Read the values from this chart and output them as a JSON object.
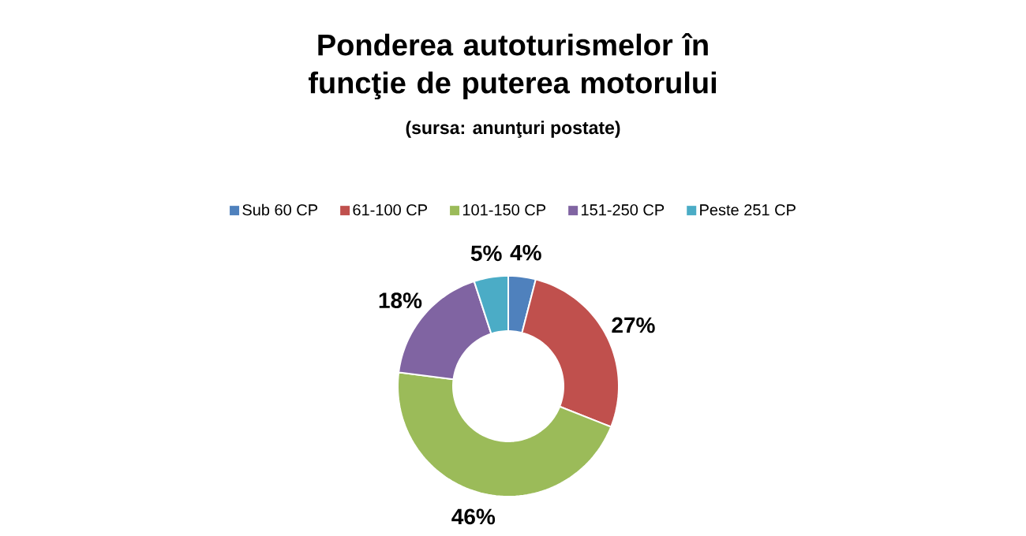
{
  "chart_data": {
    "type": "donut",
    "title": "Ponderea autoturismelor în funcţie de puterea motorului",
    "subtitle": "(sursa: anunţuri postate)",
    "categories": [
      "Sub 60 CP",
      "61-100 CP",
      "101-150 CP",
      "151-250 CP",
      "Peste 251 CP"
    ],
    "values": [
      4,
      27,
      46,
      18,
      5
    ],
    "value_labels": [
      "4%",
      "27%",
      "46%",
      "18%",
      "5%"
    ],
    "colors": [
      "#4f81bd",
      "#c0504d",
      "#9bbb59",
      "#8064a2",
      "#4bacc6"
    ],
    "legend": "top"
  }
}
